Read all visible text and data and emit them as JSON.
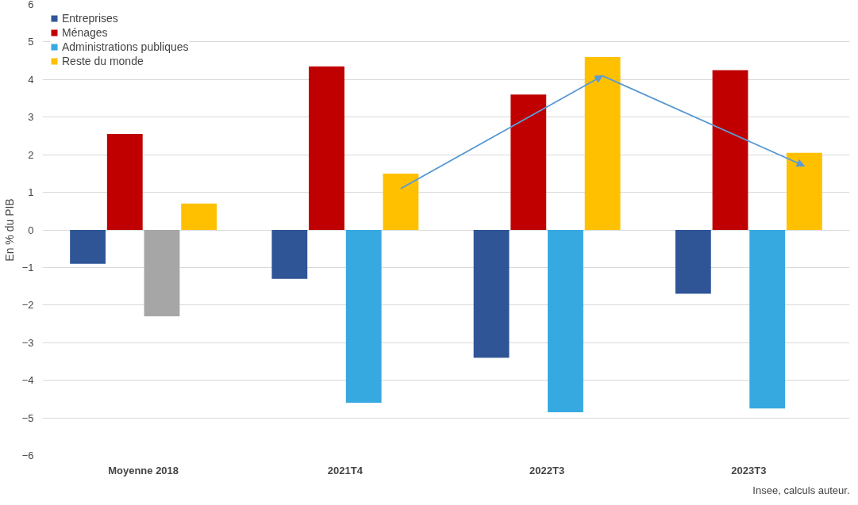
{
  "chart_data": {
    "type": "bar",
    "ylabel": "En % du PIB",
    "categories": [
      "Moyenne 2018",
      "2021T4",
      "2022T3",
      "2023T3"
    ],
    "series": [
      {
        "name": "Entreprises",
        "color": "#2f5597",
        "values": [
          -0.9,
          -1.3,
          -3.4,
          -1.7
        ]
      },
      {
        "name": "Ménages",
        "color": "#c00000",
        "values": [
          2.55,
          4.35,
          3.6,
          4.25
        ]
      },
      {
        "name": "Administrations publiques",
        "color": "#36a9e1",
        "colors": [
          "#a6a6a6",
          "#36a9e1",
          "#36a9e1",
          "#36a9e1"
        ],
        "values": [
          -2.3,
          -4.6,
          -4.85,
          -4.75
        ]
      },
      {
        "name": "Reste du monde",
        "color": "#ffc000",
        "values": [
          0.7,
          1.5,
          4.6,
          2.05
        ]
      },
      {
        "type": "line",
        "color": "#5b9bd5",
        "values": [
          null,
          1.1,
          4.1,
          1.7
        ]
      }
    ],
    "ylim": [
      -6,
      6
    ],
    "yticks": [
      -6,
      -5,
      -4,
      -3,
      -2,
      -1,
      0,
      1,
      2,
      3,
      4,
      5,
      6
    ],
    "grid": "y",
    "legend": "top left",
    "annotations": [
      "Insee, calculs auteur."
    ]
  }
}
